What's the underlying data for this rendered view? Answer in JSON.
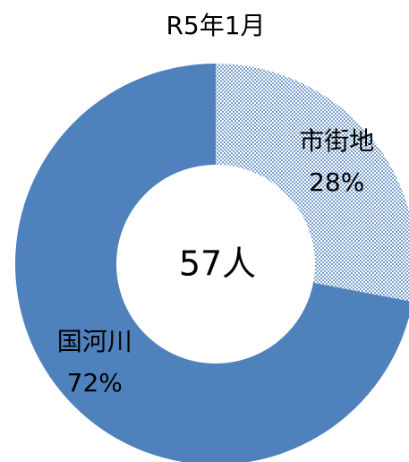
{
  "chart_data": {
    "type": "donut",
    "title": "R5年1月",
    "center_label": "57人",
    "categories": [
      "市街地",
      "国河川"
    ],
    "values": [
      28,
      72
    ],
    "value_labels": [
      "28%",
      "72%"
    ],
    "colors": [
      "#4f81bd",
      "#4f81bd"
    ],
    "patterns": [
      "dots",
      "solid"
    ]
  }
}
